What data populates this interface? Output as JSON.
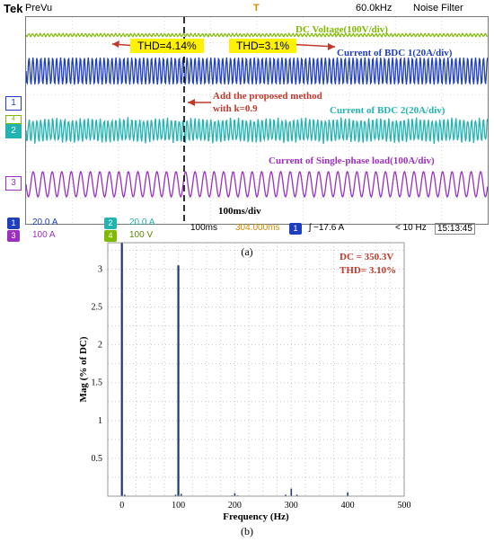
{
  "scope": {
    "brand": "Tek",
    "mode": "PreVu",
    "sample_rate": "60.0kHz",
    "filter": "Noise Filter",
    "trigger_marker": "T",
    "labels": {
      "dc_voltage": "DC Voltage(100V/div)",
      "bdc1": "Current of BDC 1(20A/div)",
      "bdc2": "Current of BDC 2(20A/div)",
      "load": "Current of Single-phase load(100A/div)",
      "method_line1": "Add the proposed method",
      "method_line2": "with k=0.9",
      "timebase": "100ms/div"
    },
    "thd_before": "THD=4.14%",
    "thd_after": "THD=3.1%",
    "channels": [
      {
        "num": "1",
        "scale": "20.0 A",
        "color": "#1f3fbf"
      },
      {
        "num": "2",
        "scale": "20.0 A",
        "color": "#22b3b3"
      },
      {
        "num": "3",
        "scale": "100 A",
        "color": "#9b30c0"
      },
      {
        "num": "4",
        "scale": "100 V",
        "color": "#7fba00"
      }
    ],
    "status": {
      "time_div": "100ms",
      "position": "304.000ms",
      "trig_ch": "1",
      "trig_level": "ʃ −17.6 A",
      "freq": "< 10 Hz",
      "clock": "15:13:45"
    },
    "colors": {
      "ch1": "#1f3fbf",
      "ch2": "#22b3b3",
      "ch3": "#9b30c0",
      "ch4": "#7fba00",
      "annotation": "#c0392b"
    }
  },
  "captions": {
    "a": "(a)",
    "b": "(b)"
  },
  "chart_data": {
    "type": "bar",
    "xlabel": "Frequency (Hz)",
    "ylabel": "Mag (% of DC)",
    "xlim": [
      -25,
      500
    ],
    "ylim": [
      0,
      3.35
    ],
    "x_ticks": [
      0,
      100,
      200,
      300,
      400,
      500
    ],
    "y_ticks": [
      0.5,
      1,
      1.5,
      2,
      2.5,
      3
    ],
    "y_tick_labels": [
      "0.5",
      "1",
      "1.5",
      "2",
      "2.5",
      "3"
    ],
    "grid": true,
    "annotations": [
      "DC = 350.3V",
      "THD= 3.10%"
    ],
    "x": [
      0,
      5,
      95,
      100,
      105,
      195,
      200,
      205,
      290,
      300,
      310,
      400
    ],
    "values": [
      3.35,
      0.02,
      0.02,
      3.05,
      0.03,
      0.01,
      0.04,
      0.01,
      0.02,
      0.1,
      0.02,
      0.05
    ],
    "color": "#1f3a6e"
  }
}
